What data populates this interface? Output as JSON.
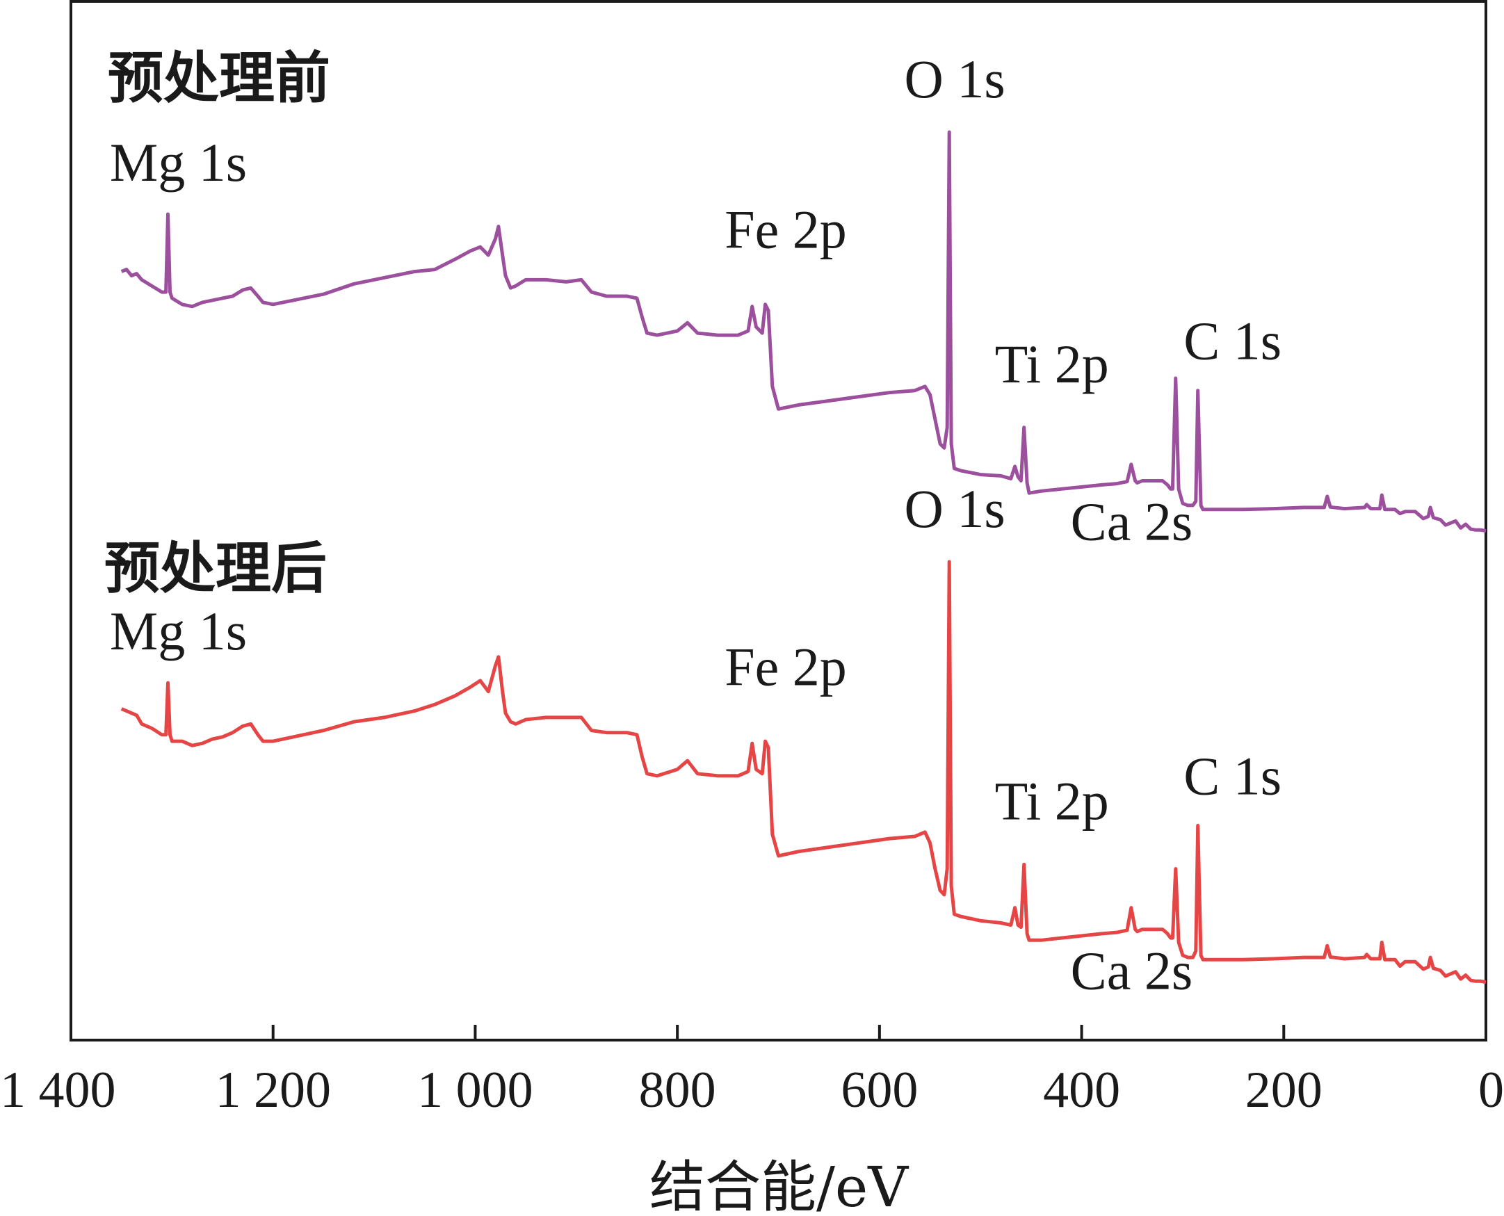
{
  "chart_data": {
    "type": "line",
    "xlabel": "结合能/eV",
    "ylabel": "",
    "xlim": [
      1400,
      0
    ],
    "x_reversed": true,
    "y_ticks_shown": false,
    "grid": false,
    "x_tick_labels": [
      "1 400",
      "1 200",
      "1 000",
      "800",
      "600",
      "400",
      "200",
      "0"
    ],
    "series": [
      {
        "name": "预处理前",
        "color": "#9b4f9d",
        "position": "top",
        "points": [
          [
            1350,
            0.66
          ],
          [
            1345,
            0.665
          ],
          [
            1340,
            0.65
          ],
          [
            1335,
            0.655
          ],
          [
            1330,
            0.64
          ],
          [
            1320,
            0.625
          ],
          [
            1310,
            0.61
          ],
          [
            1306,
            0.61
          ],
          [
            1304,
            0.8
          ],
          [
            1302,
            0.61
          ],
          [
            1300,
            0.595
          ],
          [
            1290,
            0.58
          ],
          [
            1280,
            0.575
          ],
          [
            1270,
            0.585
          ],
          [
            1260,
            0.59
          ],
          [
            1250,
            0.595
          ],
          [
            1240,
            0.6
          ],
          [
            1230,
            0.615
          ],
          [
            1222,
            0.62
          ],
          [
            1215,
            0.6
          ],
          [
            1210,
            0.585
          ],
          [
            1200,
            0.58
          ],
          [
            1180,
            0.59
          ],
          [
            1150,
            0.605
          ],
          [
            1120,
            0.63
          ],
          [
            1090,
            0.645
          ],
          [
            1060,
            0.66
          ],
          [
            1040,
            0.665
          ],
          [
            1020,
            0.69
          ],
          [
            1005,
            0.71
          ],
          [
            995,
            0.72
          ],
          [
            987,
            0.7
          ],
          [
            980,
            0.74
          ],
          [
            977,
            0.77
          ],
          [
            973,
            0.7
          ],
          [
            970,
            0.65
          ],
          [
            965,
            0.62
          ],
          [
            960,
            0.625
          ],
          [
            950,
            0.64
          ],
          [
            930,
            0.64
          ],
          [
            910,
            0.635
          ],
          [
            895,
            0.64
          ],
          [
            885,
            0.61
          ],
          [
            870,
            0.6
          ],
          [
            850,
            0.6
          ],
          [
            840,
            0.595
          ],
          [
            835,
            0.55
          ],
          [
            830,
            0.51
          ],
          [
            820,
            0.505
          ],
          [
            800,
            0.515
          ],
          [
            790,
            0.535
          ],
          [
            780,
            0.51
          ],
          [
            760,
            0.505
          ],
          [
            740,
            0.505
          ],
          [
            730,
            0.515
          ],
          [
            726,
            0.575
          ],
          [
            722,
            0.525
          ],
          [
            716,
            0.51
          ],
          [
            713,
            0.58
          ],
          [
            710,
            0.565
          ],
          [
            706,
            0.38
          ],
          [
            700,
            0.325
          ],
          [
            680,
            0.335
          ],
          [
            650,
            0.345
          ],
          [
            620,
            0.355
          ],
          [
            590,
            0.365
          ],
          [
            565,
            0.37
          ],
          [
            555,
            0.38
          ],
          [
            550,
            0.36
          ],
          [
            545,
            0.3
          ],
          [
            540,
            0.24
          ],
          [
            536,
            0.23
          ],
          [
            533,
            0.28
          ],
          [
            531,
            1.0
          ],
          [
            529,
            0.24
          ],
          [
            526,
            0.18
          ],
          [
            520,
            0.175
          ],
          [
            500,
            0.165
          ],
          [
            480,
            0.162
          ],
          [
            470,
            0.155
          ],
          [
            466,
            0.185
          ],
          [
            463,
            0.16
          ],
          [
            460,
            0.15
          ],
          [
            457,
            0.28
          ],
          [
            454,
            0.145
          ],
          [
            452,
            0.12
          ],
          [
            440,
            0.125
          ],
          [
            420,
            0.13
          ],
          [
            400,
            0.135
          ],
          [
            380,
            0.14
          ],
          [
            365,
            0.143
          ],
          [
            355,
            0.148
          ],
          [
            351,
            0.19
          ],
          [
            347,
            0.15
          ],
          [
            345,
            0.145
          ],
          [
            340,
            0.15
          ],
          [
            320,
            0.15
          ],
          [
            315,
            0.14
          ],
          [
            312,
            0.13
          ],
          [
            310,
            0.13
          ],
          [
            307,
            0.4
          ],
          [
            304,
            0.13
          ],
          [
            300,
            0.095
          ],
          [
            295,
            0.09
          ],
          [
            290,
            0.09
          ],
          [
            287,
            0.1
          ],
          [
            285,
            0.37
          ],
          [
            282,
            0.09
          ],
          [
            280,
            0.08
          ],
          [
            260,
            0.08
          ],
          [
            240,
            0.08
          ],
          [
            210,
            0.082
          ],
          [
            180,
            0.085
          ],
          [
            160,
            0.085
          ],
          [
            157,
            0.112
          ],
          [
            154,
            0.086
          ],
          [
            140,
            0.082
          ],
          [
            120,
            0.085
          ],
          [
            118,
            0.092
          ],
          [
            114,
            0.082
          ],
          [
            105,
            0.082
          ],
          [
            103,
            0.115
          ],
          [
            100,
            0.08
          ],
          [
            90,
            0.08
          ],
          [
            85,
            0.07
          ],
          [
            80,
            0.075
          ],
          [
            70,
            0.075
          ],
          [
            62,
            0.058
          ],
          [
            57,
            0.063
          ],
          [
            55,
            0.085
          ],
          [
            52,
            0.06
          ],
          [
            45,
            0.055
          ],
          [
            40,
            0.042
          ],
          [
            35,
            0.047
          ],
          [
            30,
            0.052
          ],
          [
            25,
            0.035
          ],
          [
            20,
            0.044
          ],
          [
            15,
            0.032
          ],
          [
            10,
            0.03
          ],
          [
            5,
            0.03
          ],
          [
            0,
            0.028
          ]
        ]
      },
      {
        "name": "预处理后",
        "color": "#e54545",
        "position": "bottom",
        "points": [
          [
            1350,
            0.66
          ],
          [
            1345,
            0.655
          ],
          [
            1340,
            0.65
          ],
          [
            1335,
            0.645
          ],
          [
            1330,
            0.625
          ],
          [
            1320,
            0.615
          ],
          [
            1310,
            0.6
          ],
          [
            1306,
            0.6
          ],
          [
            1304,
            0.72
          ],
          [
            1302,
            0.6
          ],
          [
            1300,
            0.585
          ],
          [
            1290,
            0.585
          ],
          [
            1280,
            0.575
          ],
          [
            1270,
            0.58
          ],
          [
            1260,
            0.59
          ],
          [
            1250,
            0.595
          ],
          [
            1240,
            0.605
          ],
          [
            1230,
            0.62
          ],
          [
            1222,
            0.625
          ],
          [
            1215,
            0.6
          ],
          [
            1210,
            0.585
          ],
          [
            1200,
            0.585
          ],
          [
            1180,
            0.595
          ],
          [
            1150,
            0.61
          ],
          [
            1120,
            0.63
          ],
          [
            1090,
            0.64
          ],
          [
            1060,
            0.655
          ],
          [
            1040,
            0.67
          ],
          [
            1020,
            0.69
          ],
          [
            1005,
            0.71
          ],
          [
            995,
            0.725
          ],
          [
            987,
            0.7
          ],
          [
            980,
            0.76
          ],
          [
            977,
            0.78
          ],
          [
            973,
            0.7
          ],
          [
            970,
            0.65
          ],
          [
            965,
            0.63
          ],
          [
            960,
            0.625
          ],
          [
            950,
            0.635
          ],
          [
            930,
            0.64
          ],
          [
            910,
            0.64
          ],
          [
            895,
            0.64
          ],
          [
            885,
            0.61
          ],
          [
            870,
            0.605
          ],
          [
            850,
            0.605
          ],
          [
            840,
            0.6
          ],
          [
            835,
            0.55
          ],
          [
            830,
            0.51
          ],
          [
            820,
            0.505
          ],
          [
            800,
            0.52
          ],
          [
            790,
            0.54
          ],
          [
            780,
            0.51
          ],
          [
            760,
            0.505
          ],
          [
            740,
            0.505
          ],
          [
            730,
            0.515
          ],
          [
            726,
            0.58
          ],
          [
            722,
            0.52
          ],
          [
            716,
            0.51
          ],
          [
            713,
            0.585
          ],
          [
            710,
            0.57
          ],
          [
            706,
            0.37
          ],
          [
            700,
            0.32
          ],
          [
            680,
            0.33
          ],
          [
            650,
            0.34
          ],
          [
            620,
            0.35
          ],
          [
            590,
            0.36
          ],
          [
            565,
            0.365
          ],
          [
            555,
            0.375
          ],
          [
            550,
            0.35
          ],
          [
            545,
            0.29
          ],
          [
            540,
            0.24
          ],
          [
            536,
            0.23
          ],
          [
            533,
            0.29
          ],
          [
            531,
            1.0
          ],
          [
            529,
            0.25
          ],
          [
            526,
            0.185
          ],
          [
            520,
            0.18
          ],
          [
            500,
            0.17
          ],
          [
            480,
            0.165
          ],
          [
            470,
            0.16
          ],
          [
            466,
            0.2
          ],
          [
            463,
            0.16
          ],
          [
            460,
            0.155
          ],
          [
            457,
            0.3
          ],
          [
            454,
            0.14
          ],
          [
            452,
            0.125
          ],
          [
            440,
            0.125
          ],
          [
            420,
            0.13
          ],
          [
            400,
            0.135
          ],
          [
            380,
            0.14
          ],
          [
            365,
            0.143
          ],
          [
            355,
            0.148
          ],
          [
            351,
            0.2
          ],
          [
            347,
            0.15
          ],
          [
            345,
            0.145
          ],
          [
            340,
            0.15
          ],
          [
            320,
            0.15
          ],
          [
            315,
            0.14
          ],
          [
            312,
            0.13
          ],
          [
            310,
            0.13
          ],
          [
            307,
            0.29
          ],
          [
            304,
            0.12
          ],
          [
            300,
            0.09
          ],
          [
            295,
            0.085
          ],
          [
            290,
            0.085
          ],
          [
            287,
            0.1
          ],
          [
            285,
            0.39
          ],
          [
            282,
            0.09
          ],
          [
            280,
            0.08
          ],
          [
            260,
            0.08
          ],
          [
            240,
            0.08
          ],
          [
            210,
            0.082
          ],
          [
            180,
            0.085
          ],
          [
            160,
            0.085
          ],
          [
            157,
            0.112
          ],
          [
            154,
            0.086
          ],
          [
            140,
            0.082
          ],
          [
            120,
            0.085
          ],
          [
            118,
            0.092
          ],
          [
            114,
            0.082
          ],
          [
            105,
            0.082
          ],
          [
            103,
            0.12
          ],
          [
            100,
            0.08
          ],
          [
            90,
            0.08
          ],
          [
            85,
            0.065
          ],
          [
            80,
            0.075
          ],
          [
            70,
            0.075
          ],
          [
            62,
            0.058
          ],
          [
            57,
            0.063
          ],
          [
            55,
            0.085
          ],
          [
            52,
            0.06
          ],
          [
            45,
            0.055
          ],
          [
            40,
            0.042
          ],
          [
            35,
            0.047
          ],
          [
            30,
            0.052
          ],
          [
            25,
            0.035
          ],
          [
            20,
            0.044
          ],
          [
            15,
            0.032
          ],
          [
            10,
            0.03
          ],
          [
            5,
            0.03
          ],
          [
            0,
            0.028
          ]
        ]
      }
    ],
    "annotations": [
      {
        "series": 0,
        "text": "Mg 1s",
        "x": 1304
      },
      {
        "series": 0,
        "text": "Fe 2p",
        "x": 710
      },
      {
        "series": 0,
        "text": "O 1s",
        "x": 531
      },
      {
        "series": 0,
        "text": "Ti 2p",
        "x": 457
      },
      {
        "series": 0,
        "text": "Ca 2s",
        "x": 440
      },
      {
        "series": 0,
        "text": "C 1s",
        "x": 285
      },
      {
        "series": 1,
        "text": "Mg 1s",
        "x": 1304
      },
      {
        "series": 1,
        "text": "Fe 2p",
        "x": 710
      },
      {
        "series": 1,
        "text": "O 1s",
        "x": 531
      },
      {
        "series": 1,
        "text": "Ti 2p",
        "x": 457
      },
      {
        "series": 1,
        "text": "Ca 2s",
        "x": 440
      },
      {
        "series": 1,
        "text": "C 1s",
        "x": 285
      }
    ]
  }
}
